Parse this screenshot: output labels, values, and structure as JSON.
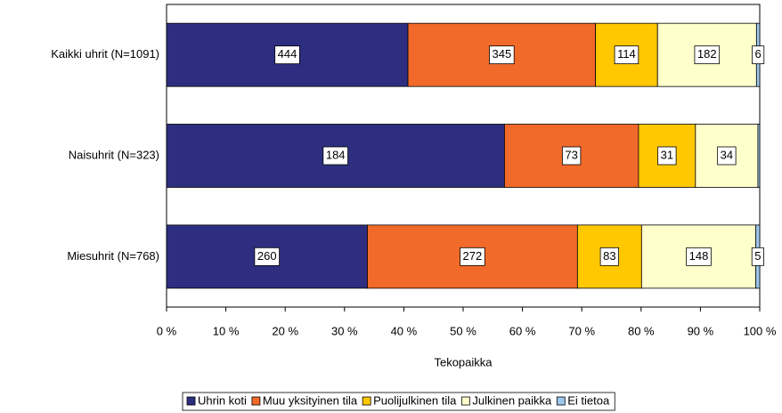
{
  "chart_data": {
    "type": "bar",
    "orientation": "horizontal",
    "stacking": "percent",
    "categories": [
      "Kaikki uhrit (N=1091)",
      "Naisuhrit (N=323)",
      "Miesuhrit (N=768)"
    ],
    "series": [
      {
        "name": "Uhrin koti",
        "color": "#2e2e80",
        "values": [
          444,
          184,
          260
        ]
      },
      {
        "name": "Muu yksityinen tila",
        "color": "#f26a2a",
        "values": [
          345,
          73,
          272
        ]
      },
      {
        "name": "Puolijulkinen tila",
        "color": "#ffc800",
        "values": [
          114,
          31,
          83
        ]
      },
      {
        "name": "Julkinen paikka",
        "color": "#ffffcc",
        "values": [
          182,
          34,
          148
        ]
      },
      {
        "name": "Ei tietoa",
        "color": "#9ec6ec",
        "values": [
          6,
          1,
          5
        ],
        "value_labels": [
          "6",
          null,
          "5"
        ]
      }
    ],
    "xlabel": "Tekopaikka",
    "xlim": [
      0,
      100
    ],
    "xticks": [
      {
        "value": 0,
        "label": "0 %"
      },
      {
        "value": 10,
        "label": "10 %"
      },
      {
        "value": 20,
        "label": "20 %"
      },
      {
        "value": 30,
        "label": "30 %"
      },
      {
        "value": 40,
        "label": "40 %"
      },
      {
        "value": 50,
        "label": "50 %"
      },
      {
        "value": 60,
        "label": "60 %"
      },
      {
        "value": 70,
        "label": "70 %"
      },
      {
        "value": 80,
        "label": "80 %"
      },
      {
        "value": 90,
        "label": "90 %"
      },
      {
        "value": 100,
        "label": "100 %"
      }
    ],
    "legend": "bottom"
  }
}
